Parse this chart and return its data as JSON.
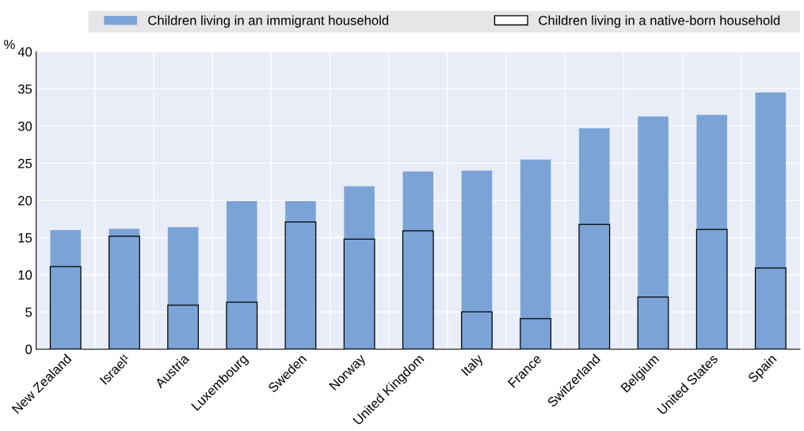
{
  "chart_data": {
    "type": "bar",
    "ylabel": "%",
    "categories": [
      "New Zealand",
      "Israel¹",
      "Austria",
      "Luxembourg",
      "Sweden",
      "Norway",
      "United Kingdom",
      "Italy",
      "France",
      "Switzerland",
      "Belgium",
      "United States",
      "Spain"
    ],
    "series": [
      {
        "name": "Children living in an immigrant household",
        "color": "#7ba3d6",
        "values": [
          16.0,
          16.2,
          16.4,
          19.9,
          19.9,
          21.9,
          23.9,
          24.0,
          25.5,
          29.7,
          31.3,
          31.5,
          34.5
        ]
      },
      {
        "name": "Children living in a native-born household",
        "color": "#000000",
        "values": [
          11.1,
          15.2,
          5.9,
          6.3,
          17.1,
          14.8,
          15.9,
          5.0,
          4.1,
          16.8,
          7.0,
          16.1,
          10.9
        ]
      }
    ],
    "ylim": [
      0,
      40
    ],
    "yticks": [
      0,
      5,
      10,
      15,
      20,
      25,
      30,
      35,
      40
    ],
    "grid": true,
    "legend": "top"
  }
}
